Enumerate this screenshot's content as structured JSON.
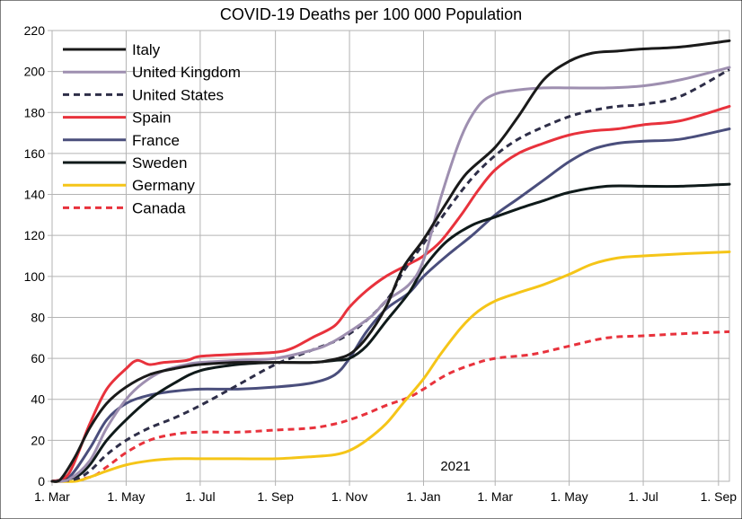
{
  "chart_data": {
    "type": "line",
    "title": "COVID-19 Deaths per 100 000 Population",
    "xlabel": "",
    "ylabel": "",
    "annotation": "2021",
    "ylim": [
      0,
      220
    ],
    "yticks": [
      0,
      20,
      40,
      60,
      80,
      100,
      120,
      140,
      160,
      180,
      200,
      220
    ],
    "xlim": [
      "2020-03-01",
      "2021-09-10"
    ],
    "xticks": [
      {
        "date": "2020-03-01",
        "label": "1. Mar"
      },
      {
        "date": "2020-05-01",
        "label": "1. May"
      },
      {
        "date": "2020-07-01",
        "label": "1. Jul"
      },
      {
        "date": "2020-09-01",
        "label": "1. Sep"
      },
      {
        "date": "2020-11-01",
        "label": "1. Nov"
      },
      {
        "date": "2021-01-01",
        "label": "1. Jan"
      },
      {
        "date": "2021-03-01",
        "label": "1. Mar"
      },
      {
        "date": "2021-05-01",
        "label": "1. May"
      },
      {
        "date": "2021-07-01",
        "label": "1. Jul"
      },
      {
        "date": "2021-09-01",
        "label": "1. Sep"
      }
    ],
    "grid": true,
    "legend_position": "top-left",
    "series": [
      {
        "name": "Italy",
        "color": "#1a1a1a",
        "dash": "solid",
        "x": [
          "2020-03-01",
          "2020-03-08",
          "2020-03-20",
          "2020-04-01",
          "2020-04-15",
          "2020-05-01",
          "2020-05-20",
          "2020-06-10",
          "2020-07-01",
          "2020-08-01",
          "2020-09-01",
          "2020-10-01",
          "2020-10-15",
          "2020-11-01",
          "2020-11-15",
          "2020-12-01",
          "2020-12-15",
          "2021-01-01",
          "2021-01-20",
          "2021-02-05",
          "2021-03-01",
          "2021-03-20",
          "2021-04-10",
          "2021-05-01",
          "2021-05-20",
          "2021-06-10",
          "2021-07-01",
          "2021-08-01",
          "2021-09-10"
        ],
        "y": [
          0,
          1,
          12,
          26,
          38,
          46,
          52,
          55,
          57,
          58,
          58,
          58,
          59,
          62,
          70,
          85,
          104,
          118,
          136,
          150,
          163,
          178,
          196,
          205,
          209,
          210,
          211,
          212,
          215
        ]
      },
      {
        "name": "United Kingdom",
        "color": "#9e8fb0",
        "dash": "solid",
        "x": [
          "2020-03-01",
          "2020-03-15",
          "2020-04-01",
          "2020-04-15",
          "2020-05-01",
          "2020-05-15",
          "2020-06-01",
          "2020-06-20",
          "2020-07-01",
          "2020-08-01",
          "2020-09-01",
          "2020-10-01",
          "2020-10-15",
          "2020-11-01",
          "2020-11-20",
          "2020-12-01",
          "2020-12-20",
          "2021-01-01",
          "2021-01-15",
          "2021-02-01",
          "2021-02-15",
          "2021-03-01",
          "2021-03-20",
          "2021-04-10",
          "2021-05-01",
          "2021-06-01",
          "2021-07-01",
          "2021-08-01",
          "2021-09-10"
        ],
        "y": [
          0,
          1,
          10,
          26,
          40,
          48,
          54,
          57,
          58,
          59,
          60,
          64,
          67,
          73,
          81,
          88,
          96,
          108,
          138,
          168,
          183,
          189,
          191,
          192,
          192,
          192,
          193,
          196,
          202
        ]
      },
      {
        "name": "United States",
        "color": "#2e2e48",
        "dash": "dashed",
        "x": [
          "2020-03-01",
          "2020-03-20",
          "2020-04-01",
          "2020-04-15",
          "2020-05-01",
          "2020-05-20",
          "2020-06-10",
          "2020-07-01",
          "2020-08-01",
          "2020-09-01",
          "2020-10-01",
          "2020-11-01",
          "2020-12-01",
          "2020-12-15",
          "2021-01-01",
          "2021-01-20",
          "2021-02-10",
          "2021-03-01",
          "2021-03-20",
          "2021-04-10",
          "2021-05-01",
          "2021-05-20",
          "2021-06-10",
          "2021-07-01",
          "2021-08-01",
          "2021-09-10"
        ],
        "y": [
          0,
          1,
          5,
          13,
          20,
          26,
          31,
          37,
          47,
          57,
          64,
          72,
          88,
          102,
          116,
          132,
          148,
          159,
          167,
          173,
          178,
          181,
          183,
          184,
          188,
          201
        ]
      },
      {
        "name": "Spain",
        "color": "#e8323c",
        "dash": "solid",
        "x": [
          "2020-03-01",
          "2020-03-15",
          "2020-04-01",
          "2020-04-15",
          "2020-05-01",
          "2020-05-10",
          "2020-05-20",
          "2020-06-01",
          "2020-06-20",
          "2020-07-01",
          "2020-08-01",
          "2020-09-01",
          "2020-09-15",
          "2020-10-01",
          "2020-10-20",
          "2020-11-01",
          "2020-11-15",
          "2020-12-01",
          "2020-12-20",
          "2021-01-01",
          "2021-01-15",
          "2021-02-01",
          "2021-02-15",
          "2021-03-01",
          "2021-03-20",
          "2021-04-10",
          "2021-05-01",
          "2021-05-20",
          "2021-06-10",
          "2021-07-01",
          "2021-08-01",
          "2021-09-10"
        ],
        "y": [
          0,
          4,
          28,
          45,
          55,
          59,
          57,
          58,
          59,
          61,
          62,
          63,
          65,
          70,
          76,
          85,
          93,
          100,
          106,
          110,
          117,
          130,
          142,
          152,
          160,
          165,
          169,
          171,
          172,
          174,
          176,
          183
        ]
      },
      {
        "name": "France",
        "color": "#4a4e7c",
        "dash": "solid",
        "x": [
          "2020-03-01",
          "2020-03-15",
          "2020-04-01",
          "2020-04-15",
          "2020-05-01",
          "2020-05-20",
          "2020-06-10",
          "2020-07-01",
          "2020-08-01",
          "2020-09-01",
          "2020-10-01",
          "2020-10-20",
          "2020-11-01",
          "2020-11-15",
          "2020-12-01",
          "2020-12-20",
          "2021-01-01",
          "2021-01-20",
          "2021-02-10",
          "2021-03-01",
          "2021-03-20",
          "2021-04-10",
          "2021-05-01",
          "2021-05-20",
          "2021-06-10",
          "2021-07-01",
          "2021-08-01",
          "2021-09-10"
        ],
        "y": [
          0,
          2,
          16,
          30,
          38,
          42,
          44,
          45,
          45,
          46,
          48,
          52,
          60,
          73,
          84,
          92,
          100,
          110,
          120,
          130,
          138,
          147,
          156,
          162,
          165,
          166,
          167,
          172
        ]
      },
      {
        "name": "Sweden",
        "color": "#0f1a1a",
        "dash": "solid",
        "x": [
          "2020-03-01",
          "2020-03-20",
          "2020-04-01",
          "2020-04-15",
          "2020-05-01",
          "2020-05-20",
          "2020-06-10",
          "2020-07-01",
          "2020-08-01",
          "2020-09-01",
          "2020-10-01",
          "2020-10-20",
          "2020-11-01",
          "2020-11-15",
          "2020-12-01",
          "2020-12-20",
          "2021-01-01",
          "2021-01-20",
          "2021-02-10",
          "2021-03-01",
          "2021-03-20",
          "2021-04-10",
          "2021-05-01",
          "2021-06-01",
          "2021-07-01",
          "2021-08-01",
          "2021-09-10"
        ],
        "y": [
          0,
          2,
          8,
          20,
          30,
          40,
          48,
          54,
          57,
          58,
          58,
          59,
          60,
          66,
          78,
          92,
          104,
          117,
          125,
          129,
          133,
          137,
          141,
          144,
          144,
          144,
          145
        ]
      },
      {
        "name": "Germany",
        "color": "#f5c518",
        "dash": "solid",
        "x": [
          "2020-03-01",
          "2020-03-20",
          "2020-04-01",
          "2020-04-15",
          "2020-05-01",
          "2020-05-20",
          "2020-06-10",
          "2020-07-01",
          "2020-08-01",
          "2020-09-01",
          "2020-10-01",
          "2020-10-20",
          "2020-11-01",
          "2020-11-15",
          "2020-12-01",
          "2020-12-15",
          "2021-01-01",
          "2021-01-15",
          "2021-02-01",
          "2021-02-15",
          "2021-03-01",
          "2021-03-20",
          "2021-04-10",
          "2021-05-01",
          "2021-05-20",
          "2021-06-10",
          "2021-07-01",
          "2021-08-01",
          "2021-09-10"
        ],
        "y": [
          0,
          0,
          2,
          5,
          8,
          10,
          11,
          11,
          11,
          11,
          12,
          13,
          15,
          20,
          28,
          38,
          50,
          62,
          75,
          83,
          88,
          92,
          96,
          101,
          106,
          109,
          110,
          111,
          112
        ]
      },
      {
        "name": "Canada",
        "color": "#e8323c",
        "dash": "dashed",
        "x": [
          "2020-03-01",
          "2020-04-01",
          "2020-04-15",
          "2020-05-01",
          "2020-05-20",
          "2020-06-10",
          "2020-07-01",
          "2020-08-01",
          "2020-09-01",
          "2020-10-01",
          "2020-10-20",
          "2020-11-01",
          "2020-11-15",
          "2020-12-01",
          "2020-12-20",
          "2021-01-01",
          "2021-01-20",
          "2021-02-10",
          "2021-03-01",
          "2021-04-01",
          "2021-05-01",
          "2021-06-01",
          "2021-07-01",
          "2021-08-01",
          "2021-09-10"
        ],
        "y": [
          0,
          2,
          7,
          14,
          20,
          23,
          24,
          24,
          25,
          26,
          28,
          30,
          33,
          37,
          41,
          45,
          52,
          57,
          60,
          62,
          66,
          70,
          71,
          72,
          73
        ]
      }
    ]
  }
}
